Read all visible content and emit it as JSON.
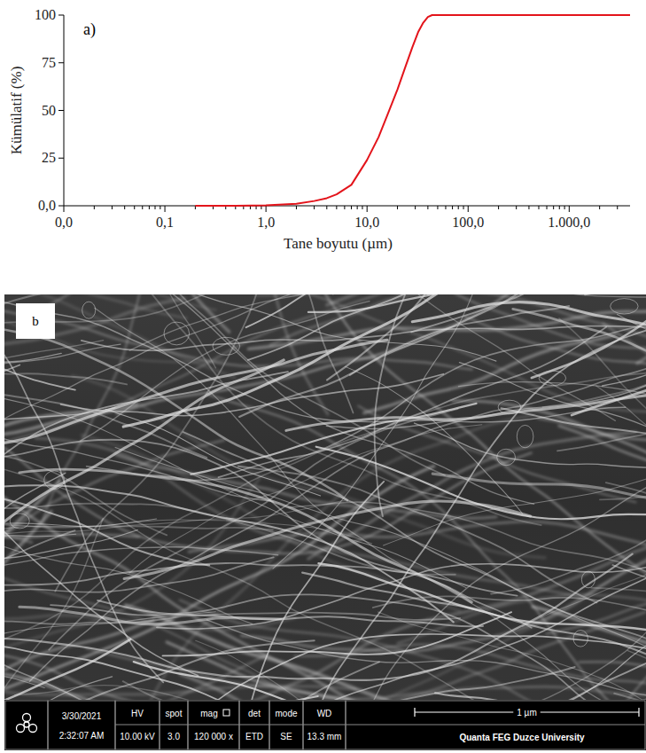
{
  "chart_data": {
    "type": "line",
    "panel_label": "a)",
    "x_label": "Tane boyutu (µm)",
    "y_label": "Kümülatif (%)",
    "x": [
      0.2,
      0.5,
      1,
      2,
      3,
      4,
      5,
      7,
      10,
      13,
      16,
      20,
      24,
      28,
      32,
      36,
      40,
      44,
      50,
      100,
      1000,
      4000
    ],
    "values": [
      0,
      0,
      0.2,
      1,
      2.5,
      4,
      6,
      11,
      24,
      36,
      48,
      61,
      73,
      83,
      91,
      96,
      99,
      100,
      100,
      100,
      100,
      100
    ],
    "color": "#e3141b",
    "log": "x",
    "xlim": [
      0.01,
      4000
    ],
    "xticks": [
      {
        "value": 0.01,
        "label": "0,0"
      },
      {
        "value": 0.1,
        "label": "0,1"
      },
      {
        "value": 1,
        "label": "1,0"
      },
      {
        "value": 10,
        "label": "10,0"
      },
      {
        "value": 100,
        "label": "100,0"
      },
      {
        "value": 1000,
        "label": "1.000,0"
      }
    ],
    "ylim": [
      0,
      100
    ],
    "yticks": [
      {
        "value": 0,
        "label": "0,0"
      },
      25,
      50,
      75,
      100
    ],
    "grid": false
  },
  "sem_image": {
    "panel_label": "b",
    "info_bar": {
      "date": "3/30/2021",
      "time": "2:32:07 AM",
      "fields": [
        {
          "head": "HV",
          "value": "10.00 kV"
        },
        {
          "head": "spot",
          "value": "3.0"
        },
        {
          "head": "mag",
          "value": "120 000 x"
        },
        {
          "head": "det",
          "value": "ETD"
        },
        {
          "head": "mode",
          "value": "SE"
        },
        {
          "head": "WD",
          "value": "13.3 mm"
        }
      ],
      "scale_bar": "1 µm",
      "instrument": "Quanta FEG Duzce University"
    }
  }
}
